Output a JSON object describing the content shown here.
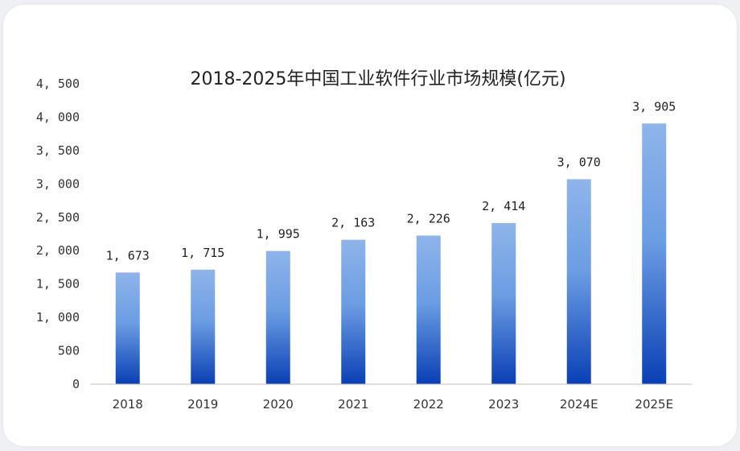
{
  "chart_data": {
    "type": "bar",
    "title": "2018-2025年中国工业软件行业市场规模(亿元)",
    "xlabel": "",
    "ylabel": "",
    "categories": [
      "2018",
      "2019",
      "2020",
      "2021",
      "2022",
      "2023",
      "2024E",
      "2025E"
    ],
    "values": [
      1673,
      1715,
      1995,
      2163,
      2226,
      2414,
      3070,
      3905
    ],
    "value_labels": [
      "1, 673",
      "1, 715",
      "1, 995",
      "2, 163",
      "2, 226",
      "2, 414",
      "3, 070",
      "3, 905"
    ],
    "ylim": [
      0,
      4500
    ],
    "yticks": [
      0,
      500,
      1000,
      1500,
      2000,
      2500,
      3000,
      3500,
      4000,
      4500
    ],
    "ytick_labels": [
      "0",
      "500",
      "1, 000",
      "1, 500",
      "2, 000",
      "2, 500",
      "3, 000",
      "3, 500",
      "4, 000",
      "4, 500"
    ],
    "grid": false,
    "legend": "none",
    "colors": {
      "bar_top": "#8fb4ea",
      "bar_bottom": "#0a3fb5",
      "axis": "#bfbfbf"
    }
  }
}
